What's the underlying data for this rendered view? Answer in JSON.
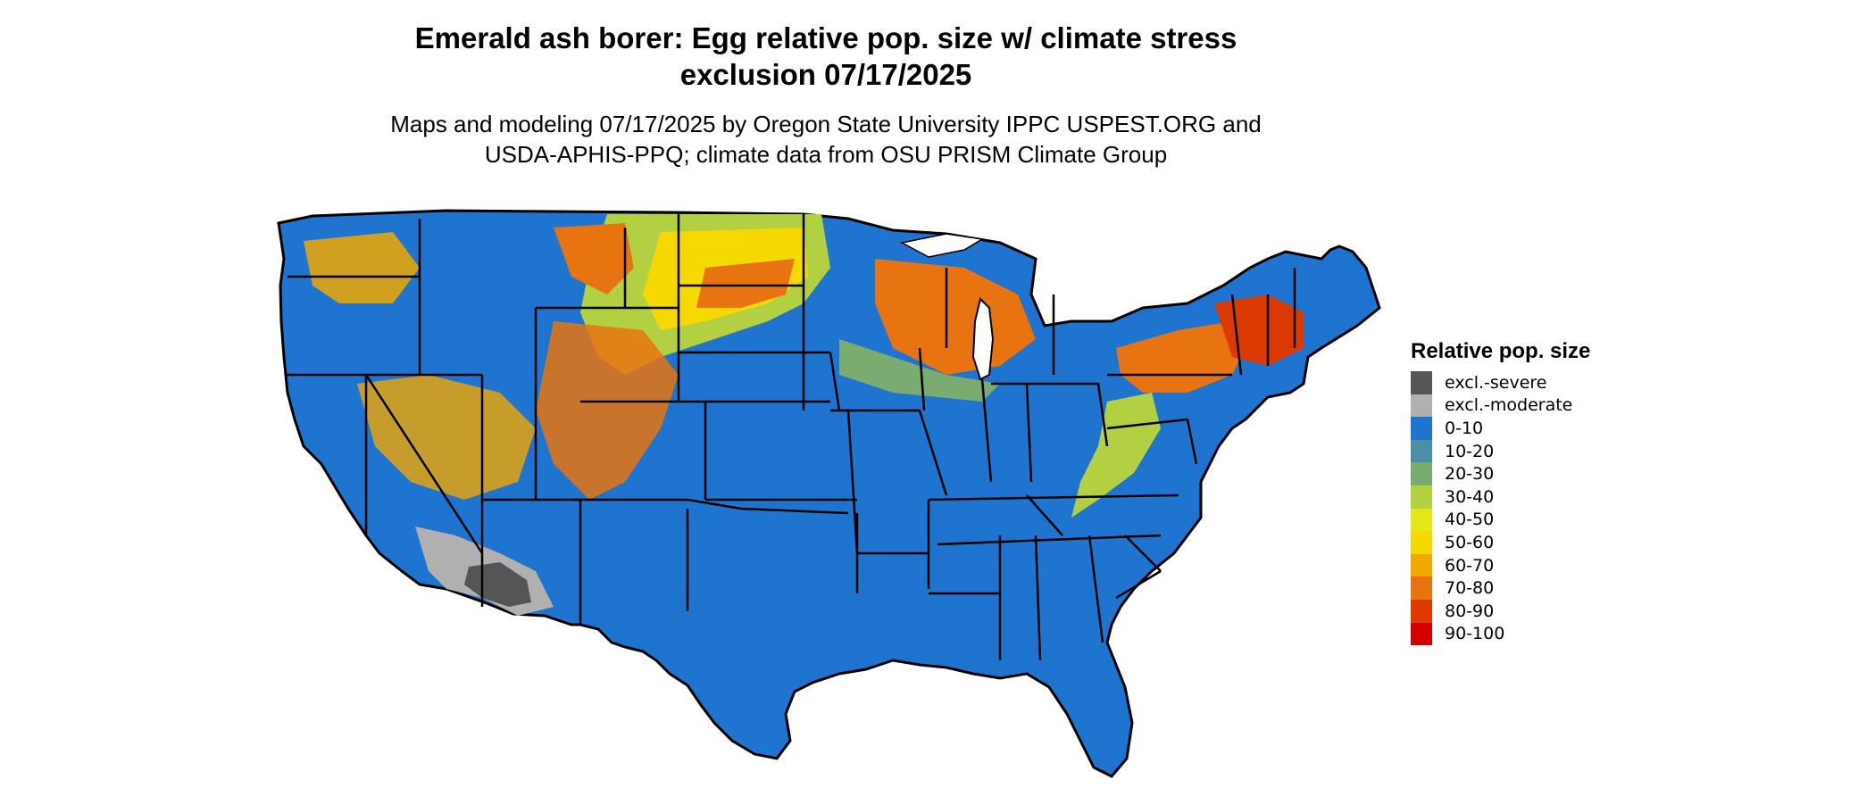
{
  "title": "Emerald ash borer: Egg relative pop. size w/ climate stress\nexclusion 07/17/2025",
  "subtitle": "Maps and modeling 07/17/2025 by Oregon State University IPPC USPEST.ORG and\nUSDA-APHIS-PPQ; climate data from OSU PRISM Climate Group",
  "legend": {
    "title": "Relative pop. size",
    "items": [
      {
        "label": "excl.-severe",
        "color": "#555555"
      },
      {
        "label": "excl.-moderate",
        "color": "#b0b0b0"
      },
      {
        "label": "0-10",
        "color": "#1e74cf"
      },
      {
        "label": "10-20",
        "color": "#4a8fa5"
      },
      {
        "label": "20-30",
        "color": "#7aab70"
      },
      {
        "label": "30-40",
        "color": "#b3d043"
      },
      {
        "label": "40-50",
        "color": "#e4e81a"
      },
      {
        "label": "50-60",
        "color": "#f6d900"
      },
      {
        "label": "60-70",
        "color": "#f0a800"
      },
      {
        "label": "70-80",
        "color": "#e77410"
      },
      {
        "label": "80-90",
        "color": "#dc3a00"
      },
      {
        "label": "90-100",
        "color": "#d40000"
      }
    ]
  }
}
